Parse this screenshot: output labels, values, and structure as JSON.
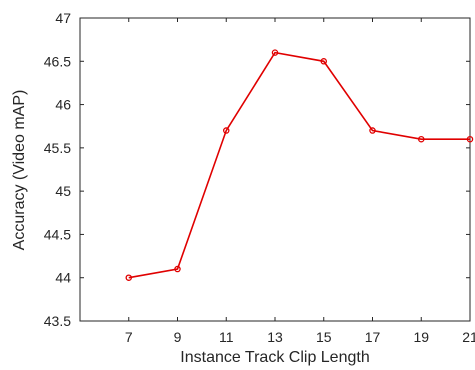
{
  "chart_data": {
    "type": "line",
    "title": "",
    "xlabel": "Instance Track Clip Length",
    "ylabel": "Accuracy (Video mAP)",
    "x": [
      7,
      9,
      11,
      13,
      15,
      17,
      19,
      21
    ],
    "xlim": [
      5,
      21
    ],
    "ylim": [
      43.5,
      47
    ],
    "xticks": [
      "7",
      "9",
      "11",
      "13",
      "15",
      "17",
      "19",
      "21"
    ],
    "yticks": [
      "43.5",
      "44",
      "44.5",
      "45",
      "45.5",
      "46",
      "46.5",
      "47"
    ],
    "grid": false,
    "series": [
      {
        "color": "#e00000",
        "marker": "circle",
        "values": [
          44.0,
          44.1,
          45.7,
          46.6,
          46.5,
          45.7,
          45.6,
          45.6
        ]
      }
    ]
  }
}
